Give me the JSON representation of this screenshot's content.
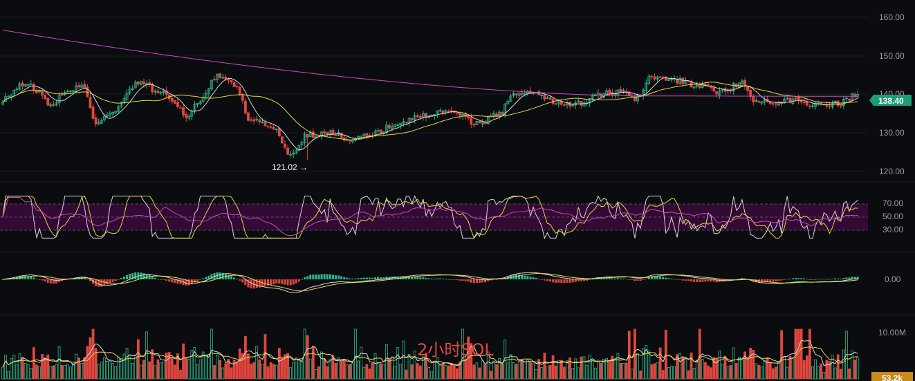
{
  "colors": {
    "background": "#0b0c0f",
    "up": "#2db68b",
    "down": "#e0473f",
    "ma_white": "#d8d8d8",
    "ma_yellow": "#e6d84a",
    "ma_magenta": "#d04ac0",
    "rsi_band": "#3a0b3a",
    "price_tag": "#1f9d74",
    "volume_tag": "#c98a1a",
    "grid": "#1a1c22"
  },
  "chart_data": {
    "type": "candlestick",
    "title": "2小时SOL",
    "price": {
      "current": "138.40",
      "low_marker": "121.02",
      "ylim": [
        115.5,
        163.5
      ],
      "ticks": [
        "160.00",
        "150.00",
        "140.00",
        "130.00",
        "120.00"
      ],
      "ma_long_start": 155.5,
      "ma_long_end": 138.0
    },
    "rsi": {
      "ticks": [
        "70.00",
        "50.00",
        "30.00"
      ],
      "band": [
        30,
        70
      ]
    },
    "macd": {
      "ticks": [
        "0.00"
      ]
    },
    "volume": {
      "ticks": [
        "10.00M"
      ],
      "current": "53.2k"
    },
    "anchors": [
      [
        0,
        137.0
      ],
      [
        8,
        141.5
      ],
      [
        12,
        139.5
      ],
      [
        17,
        135.5
      ],
      [
        22,
        138.5
      ],
      [
        28,
        141.0
      ],
      [
        33,
        130.5
      ],
      [
        40,
        134.5
      ],
      [
        48,
        141.5
      ],
      [
        56,
        139.0
      ],
      [
        60,
        136.5
      ],
      [
        65,
        132.5
      ],
      [
        70,
        137.0
      ],
      [
        76,
        143.5
      ],
      [
        82,
        141.0
      ],
      [
        88,
        131.5
      ],
      [
        96,
        129.5
      ],
      [
        102,
        122.5
      ],
      [
        108,
        127.5
      ],
      [
        116,
        128.0
      ],
      [
        124,
        126.5
      ],
      [
        132,
        128.0
      ],
      [
        140,
        131.0
      ],
      [
        150,
        133.0
      ],
      [
        160,
        134.0
      ],
      [
        168,
        130.5
      ],
      [
        176,
        133.0
      ],
      [
        180,
        138.0
      ],
      [
        188,
        139.0
      ],
      [
        196,
        136.0
      ],
      [
        204,
        136.0
      ],
      [
        212,
        138.5
      ],
      [
        220,
        139.0
      ],
      [
        224,
        137.0
      ],
      [
        230,
        143.0
      ],
      [
        236,
        142.5
      ],
      [
        246,
        141.0
      ],
      [
        254,
        139.0
      ],
      [
        262,
        141.5
      ],
      [
        266,
        137.0
      ],
      [
        274,
        136.5
      ],
      [
        282,
        137.0
      ],
      [
        288,
        135.5
      ],
      [
        296,
        136.0
      ],
      [
        303,
        138.4
      ]
    ]
  }
}
